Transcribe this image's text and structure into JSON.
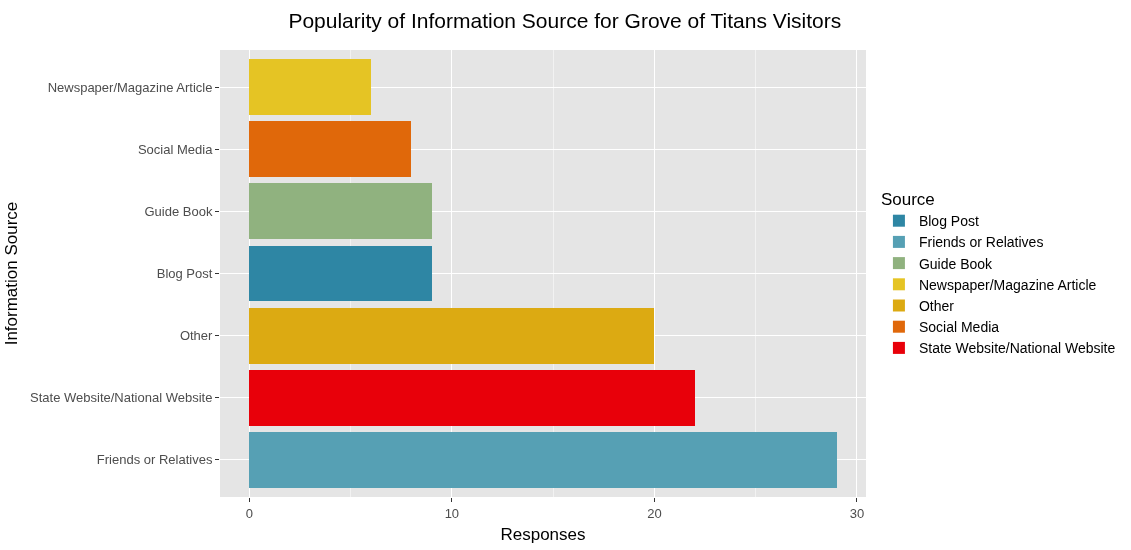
{
  "chart_data": {
    "type": "bar",
    "orientation": "horizontal",
    "stacked": true,
    "title": "Popularity of Information Source for Grove of Titans Visitors",
    "xlabel": "Responses",
    "ylabel": "Information Source",
    "legend_title": "Source",
    "legend": "right",
    "grid": true,
    "categories": [
      "Newspaper/Magazine Article",
      "Social Media",
      "Guide Book",
      "Blog Post",
      "Other",
      "State Website/National Website",
      "Friends or Relatives"
    ],
    "series": [
      {
        "name": "Blog Post",
        "color": "#2e86a4",
        "values": [
          null,
          null,
          null,
          9,
          null,
          null,
          null
        ]
      },
      {
        "name": "Friends or Relatives",
        "color": "#56a0b4",
        "values": [
          null,
          null,
          null,
          null,
          null,
          null,
          29
        ]
      },
      {
        "name": "Guide Book",
        "color": "#90b27f",
        "values": [
          null,
          null,
          9,
          null,
          null,
          null,
          null
        ]
      },
      {
        "name": "Newspaper/Magazine Article",
        "color": "#e5c424",
        "values": [
          6,
          null,
          null,
          null,
          null,
          null,
          null
        ]
      },
      {
        "name": "Other",
        "color": "#dcaa12",
        "values": [
          null,
          null,
          null,
          null,
          20,
          null,
          null
        ]
      },
      {
        "name": "Social Media",
        "color": "#e0680a",
        "values": [
          null,
          8,
          null,
          null,
          null,
          null,
          null
        ]
      },
      {
        "name": "State Website/National Website",
        "color": "#e8000a",
        "values": [
          null,
          null,
          null,
          null,
          null,
          22,
          null
        ]
      }
    ],
    "xlim": [
      -1.45,
      30.45
    ],
    "xticks": [
      0,
      10,
      20,
      30
    ]
  }
}
